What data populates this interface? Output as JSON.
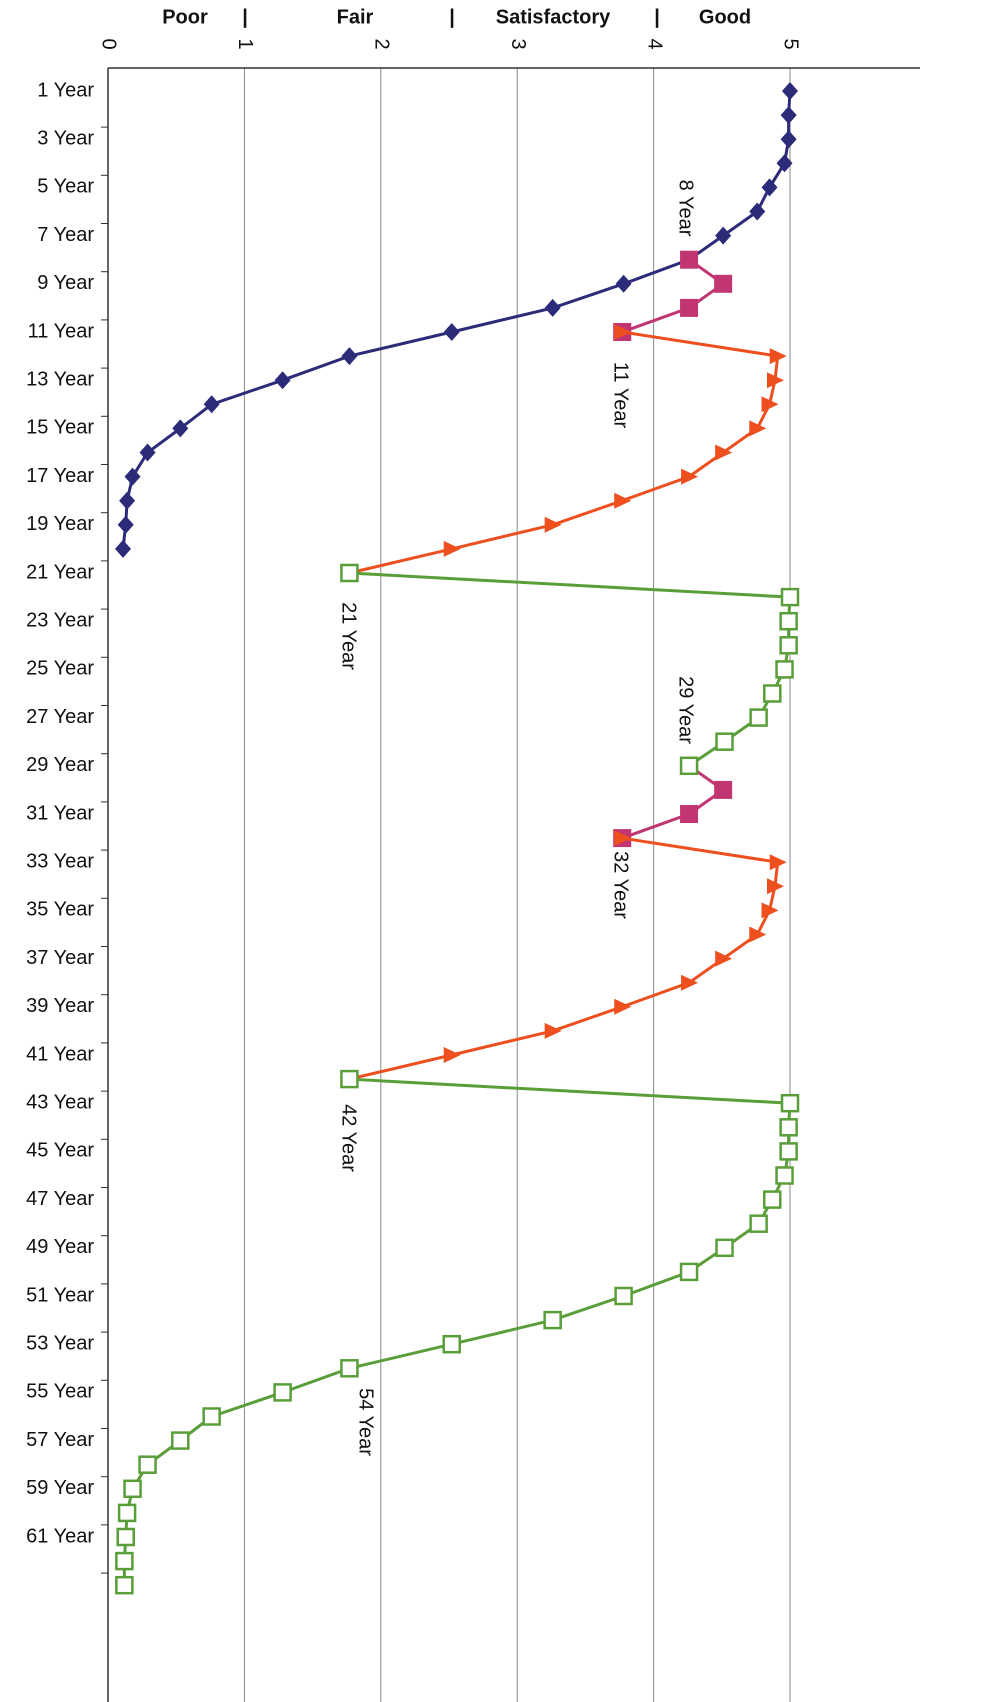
{
  "chart_data": {
    "type": "line",
    "header": [
      "Poor",
      "|",
      "Fair",
      "|",
      "Satisfactory",
      "|",
      "Good"
    ],
    "categories": [
      "1 Year",
      null,
      "3 Year",
      null,
      "5 Year",
      null,
      "7 Year",
      null,
      "9 Year",
      null,
      "11 Year",
      null,
      "13 Year",
      null,
      "15 Year",
      null,
      "17 Year",
      null,
      "19 Year",
      null,
      "21 Year",
      null,
      "23 Year",
      null,
      "25 Year",
      null,
      "27 Year",
      null,
      "29 Year",
      null,
      "31 Year",
      null,
      "33 Year",
      null,
      "35 Year",
      null,
      "37 Year",
      null,
      "39 Year",
      null,
      "41 Year",
      null,
      "43 Year",
      null,
      "45 Year",
      null,
      "47 Year",
      null,
      "49 Year",
      null,
      "51 Year",
      null,
      "53 Year",
      null,
      "55 Year",
      null,
      "57 Year",
      null,
      "59 Year",
      null,
      "61 Year",
      null,
      null
    ],
    "xlim": [
      0,
      5
    ],
    "xticks": [
      0,
      1,
      2,
      3,
      4,
      5
    ],
    "grid": true,
    "series": [
      {
        "color": "#2b2b7a",
        "marker": "diamond",
        "values": [
          5.0,
          4.99,
          4.99,
          4.96,
          4.85,
          4.76,
          4.51,
          4.26,
          3.78,
          3.26,
          2.52,
          1.77,
          1.28,
          0.76,
          0.53,
          0.29,
          0.18,
          0.14,
          0.13,
          0.11,
          null,
          null,
          null,
          null,
          null,
          null,
          null,
          null,
          null,
          null,
          null,
          null,
          null,
          null,
          null,
          null,
          null,
          null,
          null,
          null,
          null,
          null,
          null,
          null,
          null,
          null,
          null,
          null,
          null,
          null,
          null,
          null,
          null,
          null,
          null,
          null,
          null,
          null,
          null,
          null,
          null,
          null,
          null
        ]
      },
      {
        "color": "#c03572",
        "marker": "square",
        "values": [
          null,
          null,
          null,
          null,
          null,
          null,
          null,
          4.26,
          4.51,
          4.26,
          3.77,
          null,
          null,
          null,
          null,
          null,
          null,
          null,
          null,
          null,
          null,
          null,
          null,
          null,
          null,
          null,
          null,
          null,
          4.26,
          4.51,
          4.26,
          3.77,
          null,
          null,
          null,
          null,
          null,
          null,
          null,
          null,
          null,
          null,
          null,
          null,
          null,
          null,
          null,
          null,
          null,
          null,
          null,
          null,
          null,
          null,
          null,
          null,
          null,
          null,
          null,
          null,
          null,
          null,
          null
        ]
      },
      {
        "color": "#ee4f1f",
        "marker": "triangle",
        "values": [
          null,
          null,
          null,
          null,
          null,
          null,
          null,
          null,
          null,
          null,
          3.77,
          4.91,
          4.89,
          4.85,
          4.76,
          4.51,
          4.26,
          3.77,
          3.26,
          2.52,
          1.77,
          null,
          null,
          null,
          null,
          null,
          null,
          null,
          null,
          null,
          null,
          3.77,
          4.91,
          4.89,
          4.85,
          4.76,
          4.51,
          4.26,
          3.77,
          3.26,
          2.52,
          1.77,
          null,
          null,
          null,
          null,
          null,
          null,
          null,
          null,
          null,
          null,
          null,
          null,
          null,
          null,
          null,
          null,
          null,
          null,
          null,
          null,
          null
        ]
      },
      {
        "color": "#5a9e3a",
        "marker": "open-square",
        "values": [
          null,
          null,
          null,
          null,
          null,
          null,
          null,
          null,
          null,
          null,
          null,
          null,
          null,
          null,
          null,
          null,
          null,
          null,
          null,
          null,
          1.77,
          5.0,
          4.99,
          4.99,
          4.96,
          4.87,
          4.77,
          4.52,
          4.26,
          null,
          null,
          null,
          null,
          null,
          null,
          null,
          null,
          null,
          null,
          null,
          null,
          1.77,
          5.0,
          4.99,
          4.99,
          4.96,
          4.87,
          4.77,
          4.52,
          4.26,
          3.78,
          3.26,
          2.52,
          1.77,
          1.28,
          0.76,
          0.53,
          0.29,
          0.18,
          0.14,
          0.13,
          0.12,
          0.12
        ]
      }
    ],
    "annotations": [
      "8 Year",
      "11 Year",
      "21 Year",
      "29 Year",
      "32 Year",
      "42 Year",
      "54 Year"
    ]
  }
}
